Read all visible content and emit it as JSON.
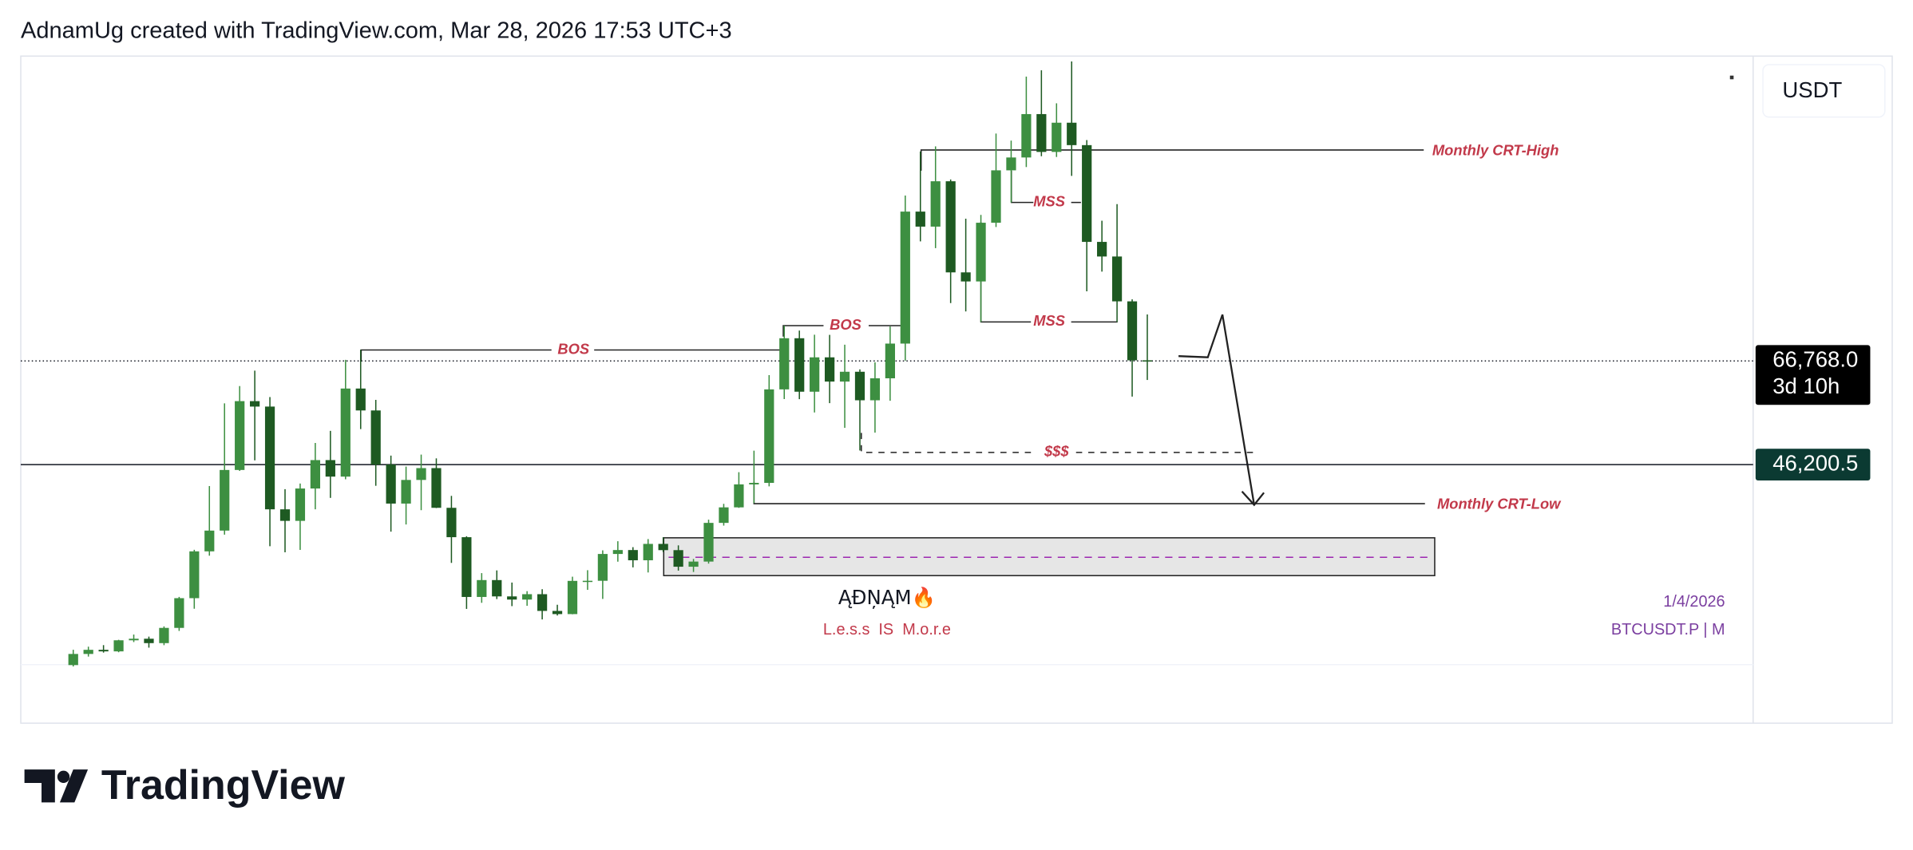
{
  "header": "AdnamUg created with TradingView.com, Mar 28, 2026 17:53 UTC+3",
  "chart_data": {
    "type": "candlestick",
    "currency": "USDT",
    "ylim": [
      6510,
      127268
    ],
    "up_color": "#3d8f41",
    "down_color": "#1e5a22",
    "open": [
      6420,
      8630,
      9450,
      9140,
      11340,
      11650,
      10780,
      13800,
      19700,
      28990,
      33110,
      45140,
      58800,
      57720,
      37330,
      35040,
      41460,
      47100,
      43820,
      61300,
      56950,
      46210,
      38470,
      43160,
      45510,
      37630,
      31800,
      19940,
      23290,
      20050,
      19420,
      20490,
      17170,
      16540,
      23130,
      23150,
      28470,
      29250,
      27220,
      30470,
      29230,
      25940,
      26960,
      34640,
      37720,
      42280,
      42580,
      61130,
      71280,
      60670,
      67490,
      62680,
      64630,
      58970,
      63330,
      70220,
      96410,
      93430,
      102430,
      84350,
      82550,
      94200,
      104600,
      107150,
      115760,
      108250,
      114050,
      109600,
      90400,
      87500,
      78600,
      66900
    ],
    "high": [
      9460,
      10070,
      10380,
      11440,
      12480,
      12070,
      14100,
      19950,
      29300,
      41950,
      58350,
      61790,
      64850,
      59600,
      41330,
      42450,
      50500,
      52900,
      67000,
      69000,
      59050,
      47990,
      45820,
      48190,
      47440,
      40000,
      31990,
      24670,
      25210,
      22800,
      21090,
      21480,
      18390,
      23960,
      25250,
      29190,
      31000,
      29820,
      31430,
      31800,
      30180,
      27480,
      35280,
      38420,
      44700,
      48970,
      63970,
      73780,
      72800,
      71980,
      71950,
      70000,
      65100,
      66500,
      73620,
      99590,
      108350,
      109350,
      102780,
      95000,
      95750,
      111900,
      110500,
      123200,
      124450,
      117900,
      126200,
      110600,
      94600,
      97900,
      79000,
      76000
    ],
    "low": [
      6150,
      8110,
      8900,
      8970,
      10990,
      9880,
      10370,
      13200,
      17600,
      28130,
      32300,
      44950,
      47050,
      30000,
      28800,
      29280,
      37330,
      39600,
      43300,
      53250,
      42000,
      32900,
      34320,
      37160,
      37580,
      26700,
      17570,
      18780,
      19520,
      18120,
      18190,
      15480,
      16260,
      16500,
      21350,
      19550,
      26940,
      25810,
      24800,
      28860,
      25170,
      24900,
      26560,
      34100,
      37620,
      38550,
      41880,
      59220,
      59190,
      56550,
      58400,
      53500,
      49000,
      52550,
      58870,
      66830,
      90500,
      89160,
      78250,
      76600,
      74500,
      93350,
      98200,
      105250,
      107400,
      107250,
      103500,
      80600,
      84500,
      74500,
      59700,
      63000
    ],
    "close": [
      8630,
      9450,
      9140,
      11340,
      11650,
      10780,
      13800,
      19700,
      28990,
      33110,
      45140,
      58800,
      57720,
      37330,
      35040,
      41460,
      47100,
      43820,
      61300,
      56950,
      46210,
      38470,
      43160,
      45510,
      37630,
      31800,
      19940,
      23290,
      20050,
      19420,
      20490,
      17170,
      16540,
      23130,
      23150,
      28470,
      29250,
      27220,
      30470,
      29230,
      25940,
      26960,
      34640,
      37720,
      42280,
      42580,
      61130,
      71280,
      60670,
      67490,
      62680,
      64630,
      58970,
      63330,
      70220,
      96410,
      93430,
      102430,
      84350,
      82550,
      94200,
      104600,
      107150,
      115760,
      108250,
      114050,
      109600,
      90400,
      87500,
      78600,
      66900,
      66768
    ],
    "last_price": {
      "value": 66768,
      "label": "66,768.0"
    },
    "countdown": "3d 10h",
    "price_line": {
      "value": 46200.5,
      "label": "46,200.5"
    },
    "annotations": {
      "crt_high": "Monthly CRT-High",
      "mss_upper": "MSS",
      "mss_lower": "MSS",
      "bos_upper": "BOS",
      "bos_lower": "BOS",
      "liquidity": "$$$",
      "crt_low": "Monthly CRT-Low"
    },
    "watermark": "ĄĐŅĄM🔥",
    "tagline": "L.e.s.s  IS  M.o.r.e",
    "date": "1/4/2026",
    "symbol": "BTCUSDT.P | M"
  },
  "footer": "TradingView"
}
